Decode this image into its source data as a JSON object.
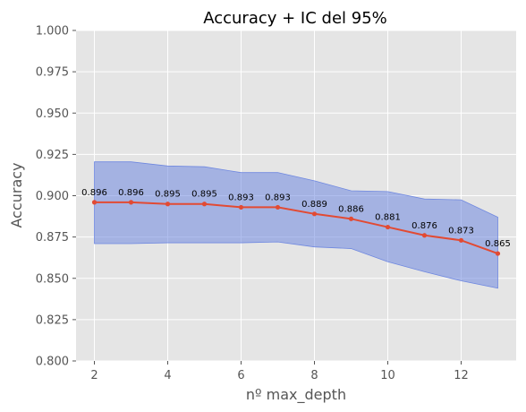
{
  "chart_data": {
    "type": "line",
    "title": "Accuracy + IC del 95%",
    "xlabel": "nº max_depth",
    "ylabel": "Accuracy",
    "xlim": [
      1.5,
      13.5
    ],
    "ylim": [
      0.8,
      1.0
    ],
    "xticks": [
      2,
      4,
      6,
      8,
      10,
      12
    ],
    "yticks": [
      0.8,
      0.825,
      0.85,
      0.875,
      0.9,
      0.925,
      0.95,
      0.975,
      1.0
    ],
    "ytick_labels": [
      "0.800",
      "0.825",
      "0.850",
      "0.875",
      "0.900",
      "0.925",
      "0.950",
      "0.975",
      "1.000"
    ],
    "grid": true,
    "x": [
      2,
      3,
      4,
      5,
      6,
      7,
      8,
      9,
      10,
      11,
      12,
      13
    ],
    "series": [
      {
        "values": [
          0.896,
          0.896,
          0.895,
          0.895,
          0.893,
          0.893,
          0.889,
          0.886,
          0.881,
          0.876,
          0.873,
          0.865
        ],
        "labels": [
          "0.896",
          "0.896",
          "0.895",
          "0.895",
          "0.893",
          "0.893",
          "0.889",
          "0.886",
          "0.881",
          "0.876",
          "0.873",
          "0.865"
        ]
      }
    ],
    "confidence_band": {
      "lower": [
        0.871,
        0.871,
        0.8715,
        0.8715,
        0.8715,
        0.872,
        0.869,
        0.868,
        0.86,
        0.854,
        0.8485,
        0.844
      ],
      "upper": [
        0.9205,
        0.9205,
        0.918,
        0.9175,
        0.914,
        0.914,
        0.909,
        0.903,
        0.9025,
        0.898,
        0.8975,
        0.887
      ]
    },
    "colors": {
      "line": "#e24a33",
      "band": "#6f88e0",
      "plot_background": "#e5e5e5",
      "grid": "#ffffff"
    }
  }
}
